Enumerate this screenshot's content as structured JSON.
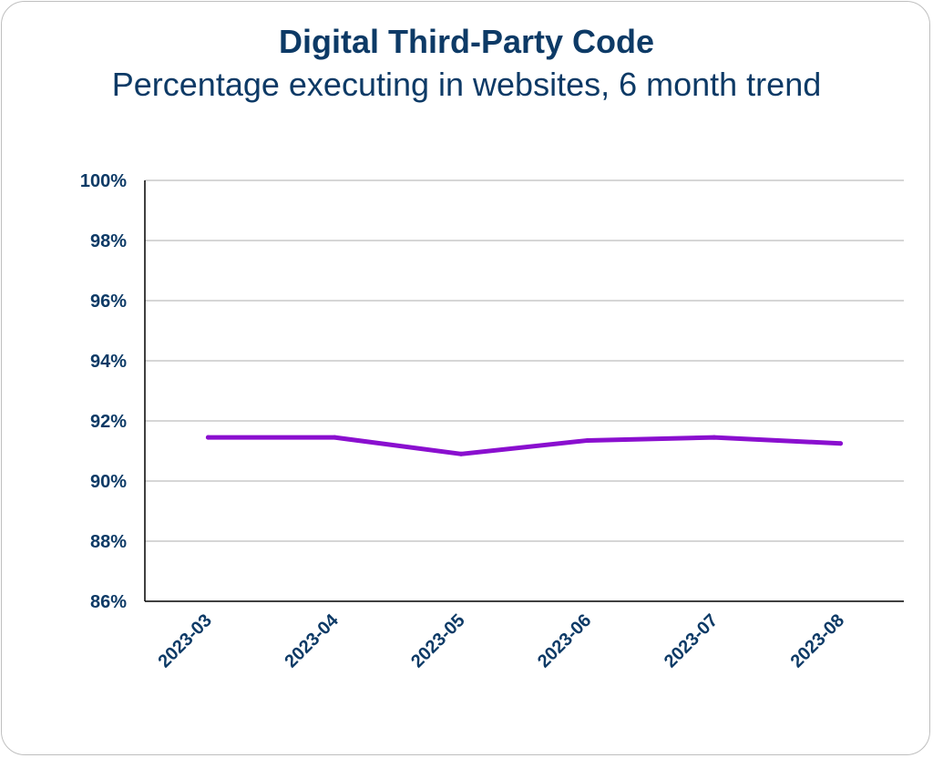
{
  "chart_data": {
    "type": "line",
    "title": "Digital Third-Party Code",
    "subtitle": "Percentage executing in websites, 6 month trend",
    "xlabel": "",
    "ylabel": "",
    "categories": [
      "2023-03",
      "2023-04",
      "2023-05",
      "2023-06",
      "2023-07",
      "2023-08"
    ],
    "series": [
      {
        "values": [
          91.45,
          91.45,
          90.9,
          91.35,
          91.45,
          91.25
        ],
        "color": "#8a0fcf"
      }
    ],
    "ylim": [
      86,
      100
    ],
    "yticks": [
      100,
      98,
      96,
      94,
      92,
      90,
      88,
      86
    ],
    "ytick_labels": [
      "100%",
      "98%",
      "96%",
      "94%",
      "92%",
      "90%",
      "88%",
      "86%"
    ],
    "grid": true,
    "legend": "none"
  }
}
